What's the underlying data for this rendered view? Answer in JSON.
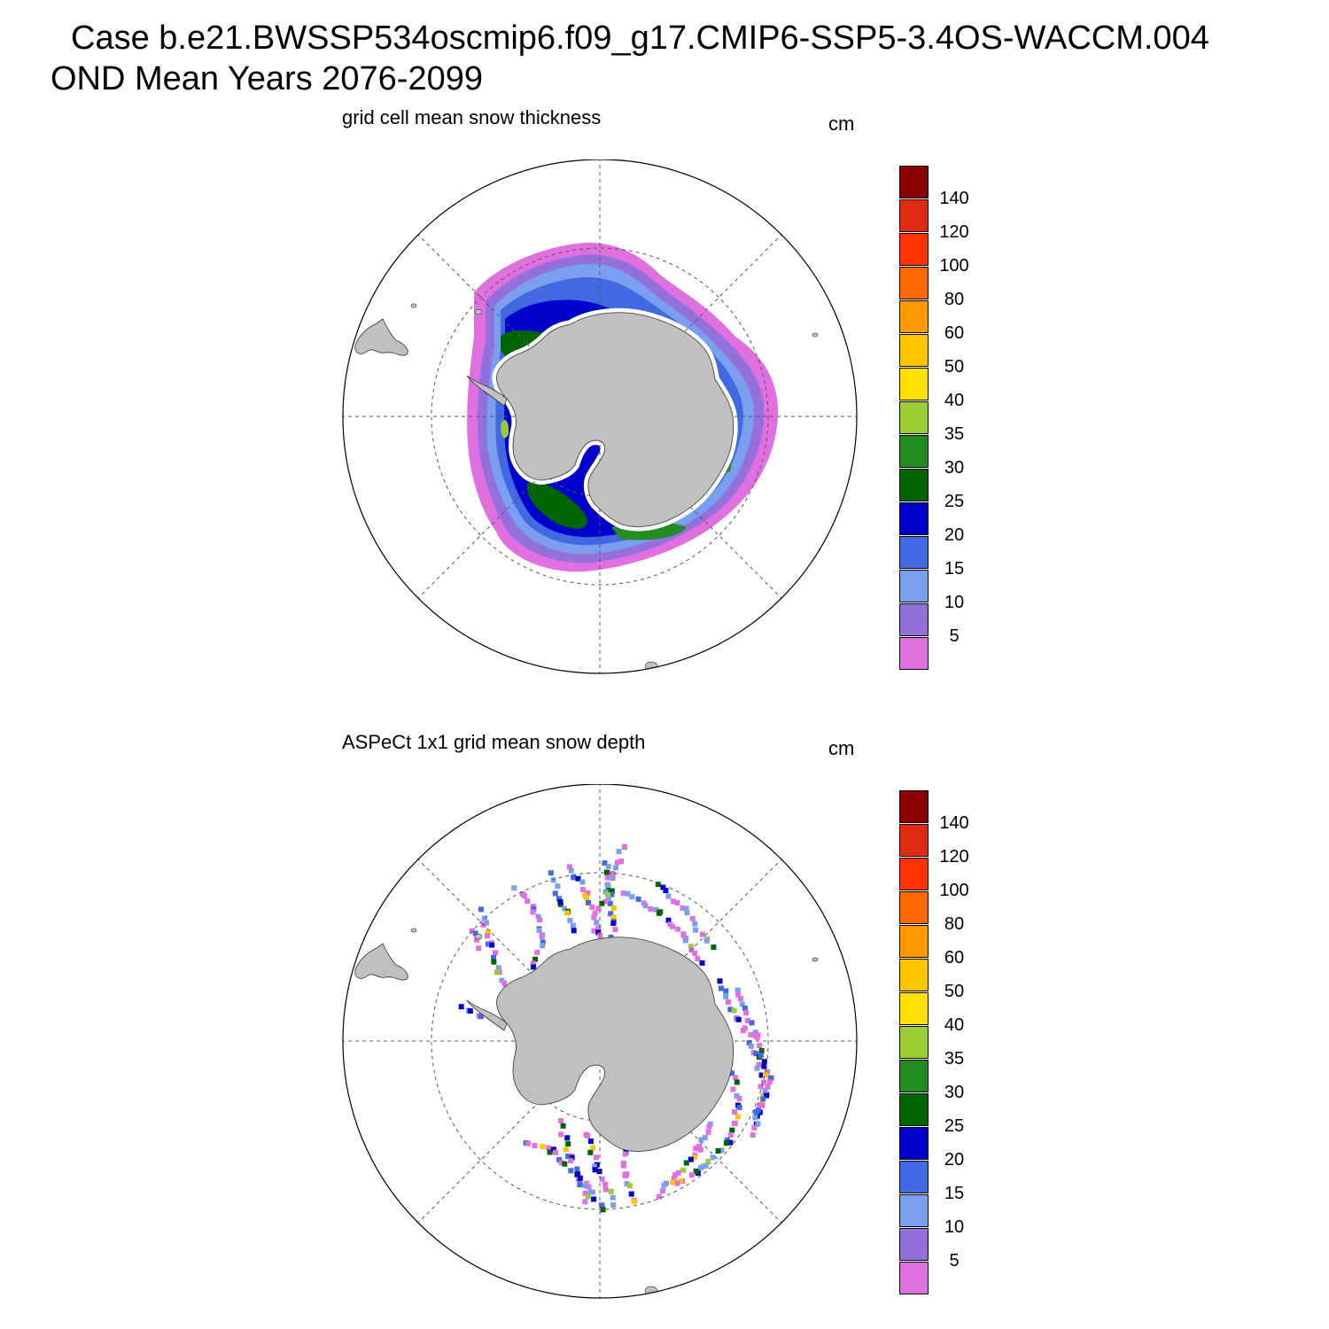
{
  "title": {
    "line1": "Case b.e21.BWSSP534oscmip6.f09_g17.CMIP6-SSP5-3.4OS-WACCM.004",
    "line2": "OND Mean   Years 2076-2099"
  },
  "colorbar": {
    "levels": [
      "5",
      "10",
      "15",
      "20",
      "25",
      "30",
      "35",
      "40",
      "50",
      "60",
      "80",
      "100",
      "120",
      "140"
    ],
    "colors": [
      "#e070e0",
      "#9370db",
      "#7b9ff0",
      "#4169e1",
      "#0000cd",
      "#006400",
      "#228b22",
      "#9acd32",
      "#ffe000",
      "#ffc400",
      "#ff9900",
      "#ff6600",
      "#ff3300",
      "#dd2a10",
      "#8b0000"
    ]
  },
  "panels": [
    {
      "id": "model",
      "title": "grid cell mean snow thickness",
      "units": "cm"
    },
    {
      "id": "obs",
      "title": "ASPeCt 1x1 grid mean snow depth",
      "units": "cm"
    }
  ],
  "map_colors": {
    "land": "#c0c0c0",
    "grid": "#555555"
  }
}
